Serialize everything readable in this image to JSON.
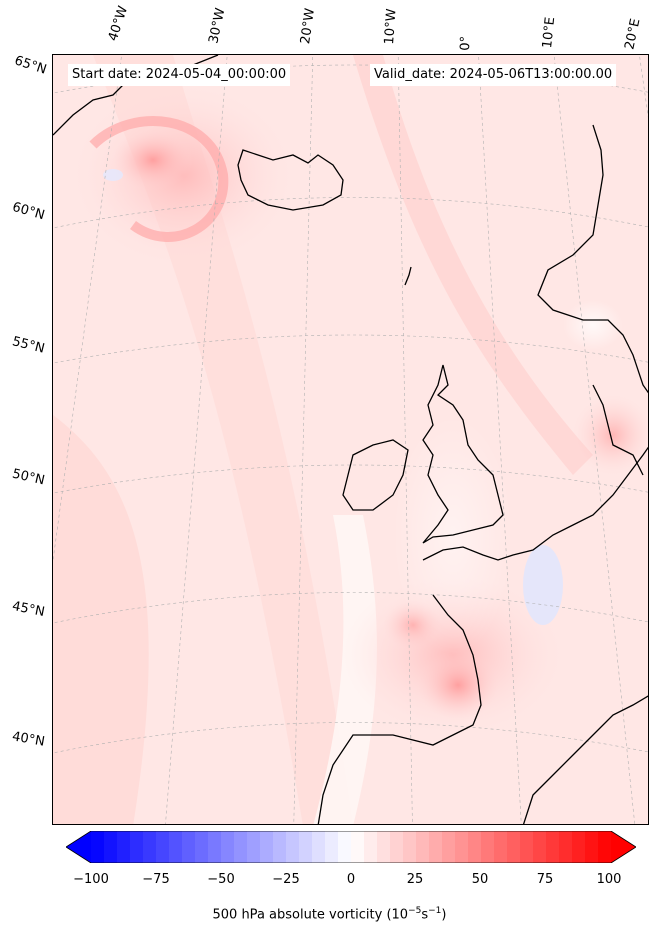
{
  "map": {
    "start_date": "Start date: 2024-05-04_00:00:00",
    "valid_date": "Valid_date: 2024-05-06T13:00:00.00",
    "lon_labels": [
      "40°W",
      "30°W",
      "20°W",
      "10°W",
      "0°",
      "10°E",
      "20°E"
    ],
    "lat_labels": [
      "65°N",
      "60°N",
      "55°N",
      "50°N",
      "45°N",
      "40°N"
    ]
  },
  "colorbar": {
    "min": -100,
    "max": 100,
    "ticks": [
      "−100",
      "−75",
      "−50",
      "−25",
      "0",
      "25",
      "50",
      "75",
      "100"
    ],
    "label": "500 hPa absolute vorticity (10",
    "label_exp1": "−5",
    "label_mid": "s",
    "label_exp2": "−1",
    "label_end": ")",
    "colors": {
      "negative": "#0000ff",
      "zero": "#ffffff",
      "positive": "#ff0000"
    },
    "extend": "both"
  }
}
